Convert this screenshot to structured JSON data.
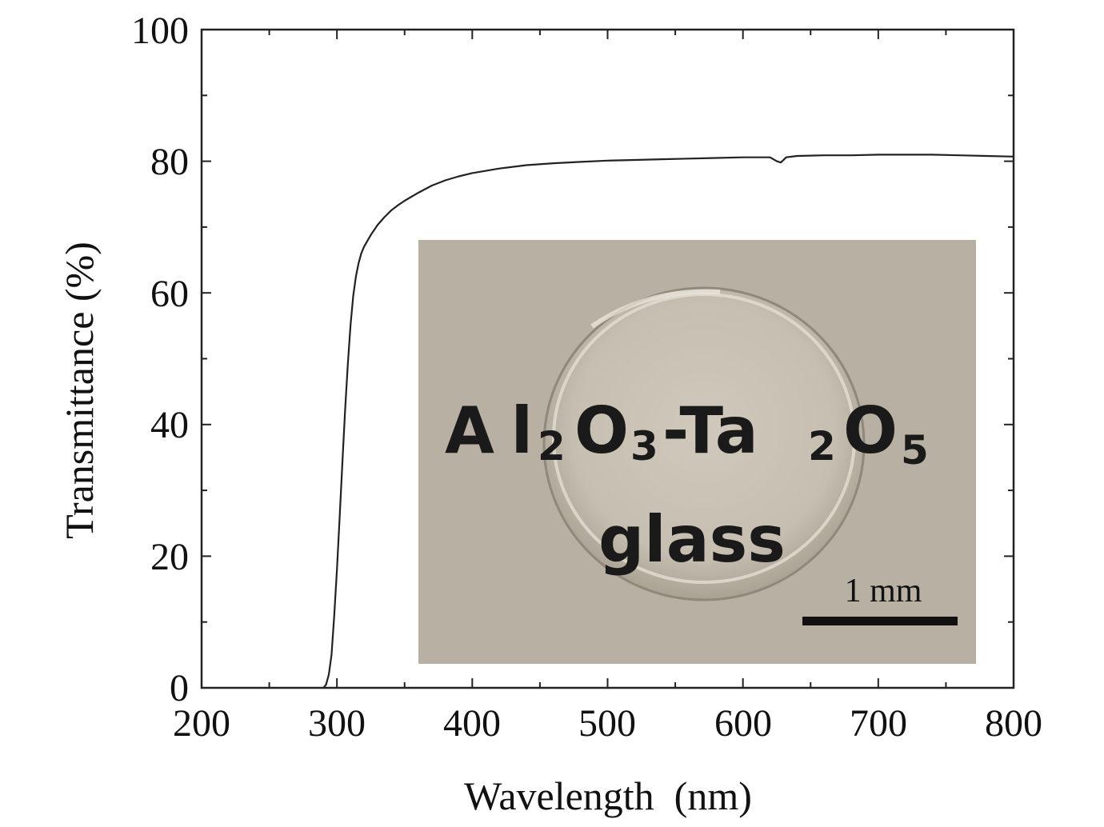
{
  "chart_data": {
    "type": "line",
    "xlabel": "Wavelength  (nm)",
    "ylabel": "Transmittance (%)",
    "xlim": [
      200,
      800
    ],
    "ylim": [
      0,
      100
    ],
    "x_ticks": [
      "200",
      "300",
      "400",
      "500",
      "600",
      "700",
      "800"
    ],
    "y_ticks": [
      "0",
      "20",
      "40",
      "60",
      "80",
      "100"
    ],
    "grid": false,
    "series": [
      {
        "x": [
          290,
          292,
          294,
          296,
          298,
          300,
          302,
          304,
          306,
          308,
          310,
          312,
          314,
          316,
          318,
          320,
          325,
          330,
          335,
          340,
          345,
          350,
          360,
          370,
          380,
          390,
          400,
          420,
          440,
          460,
          480,
          500,
          520,
          540,
          560,
          580,
          600,
          620,
          625,
          628,
          632,
          640,
          660,
          680,
          700,
          720,
          740,
          760,
          780,
          800
        ],
        "y": [
          0,
          0.5,
          2,
          5,
          11,
          18,
          26,
          34,
          42,
          49,
          55,
          59.5,
          62.5,
          64.5,
          66,
          67,
          68.8,
          70.3,
          71.5,
          72.5,
          73.3,
          74,
          75.2,
          76.3,
          77.1,
          77.7,
          78.2,
          78.9,
          79.4,
          79.7,
          79.9,
          80.1,
          80.2,
          80.3,
          80.4,
          80.5,
          80.6,
          80.6,
          80.0,
          79.8,
          80.6,
          80.8,
          80.9,
          80.9,
          81.0,
          81.0,
          81.0,
          80.9,
          80.8,
          80.7
        ],
        "color": "#222222"
      }
    ],
    "annotations": [
      "Al",
      "2",
      "O",
      "3",
      "-Ta",
      "2",
      "O",
      "5",
      "glass",
      "1 mm"
    ]
  },
  "inset": {
    "text_line1": [
      "Al",
      "2",
      "O",
      "3",
      "-Ta",
      "2",
      "O",
      "5"
    ],
    "text_line2": "glass",
    "scale_bar_label": "1 mm",
    "background_color": "#b8b0a2"
  }
}
